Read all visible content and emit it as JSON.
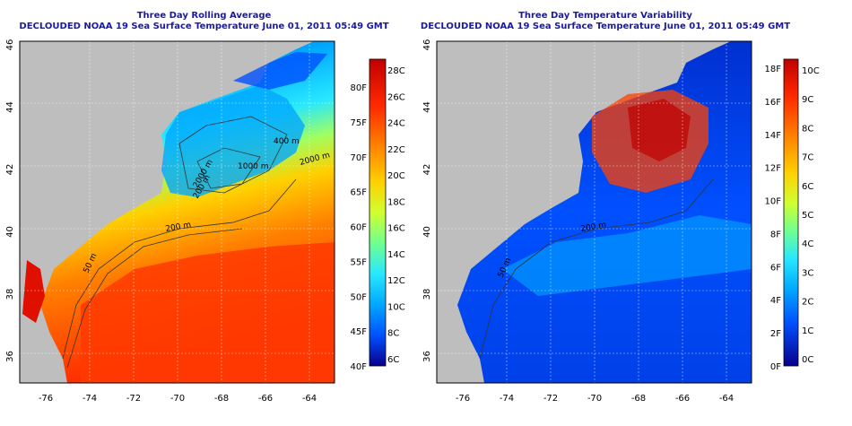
{
  "panels": [
    {
      "title": "Three Day Rolling Average",
      "subtitle": "DECLOUDED NOAA 19 Sea Surface Temperature June 01, 2011 05:49 GMT",
      "lon_ticks": [
        "-76",
        "-74",
        "-72",
        "-70",
        "-68",
        "-66",
        "-64"
      ],
      "lat_ticks": [
        "46",
        "44",
        "42",
        "40",
        "38",
        "36"
      ],
      "contours": [
        "400 m",
        "2000 m",
        "1000 m",
        "200 m",
        "2000 m",
        "200 m",
        "50 m"
      ],
      "colorbar_c": [
        "28C",
        "26C",
        "24C",
        "22C",
        "20C",
        "18C",
        "16C",
        "14C",
        "12C",
        "10C",
        "8C",
        "6C"
      ],
      "colorbar_f": [
        "80F",
        "75F",
        "70F",
        "65F",
        "60F",
        "55F",
        "50F",
        "45F",
        "40F"
      ],
      "colors": [
        "#08008c",
        "#0000e0",
        "#0050ff",
        "#00a8ff",
        "#28e8ff",
        "#70ff90",
        "#d0ff30",
        "#ffd000",
        "#ff8000",
        "#ff2800",
        "#c00000"
      ]
    },
    {
      "title": "Three Day Temperature Variability",
      "subtitle": "DECLOUDED NOAA 19 Sea Surface Temperature June 01, 2011 05:49 GMT",
      "lon_ticks": [
        "-76",
        "-74",
        "-72",
        "-70",
        "-68",
        "-66",
        "-64"
      ],
      "lat_ticks": [
        "46",
        "44",
        "42",
        "40",
        "38",
        "36"
      ],
      "contours": [
        "200 m",
        "50 m"
      ],
      "colorbar_c": [
        "10C",
        "9C",
        "8C",
        "7C",
        "6C",
        "5C",
        "4C",
        "3C",
        "2C",
        "1C",
        "0C"
      ],
      "colorbar_f": [
        "18F",
        "16F",
        "14F",
        "12F",
        "10F",
        "8F",
        "6F",
        "4F",
        "2F",
        "0F"
      ],
      "colors": [
        "#08008c",
        "#0000e0",
        "#0050ff",
        "#00a8ff",
        "#28e8ff",
        "#70ff90",
        "#d0ff30",
        "#ffd000",
        "#ff8000",
        "#ff2800",
        "#c00000"
      ]
    }
  ]
}
